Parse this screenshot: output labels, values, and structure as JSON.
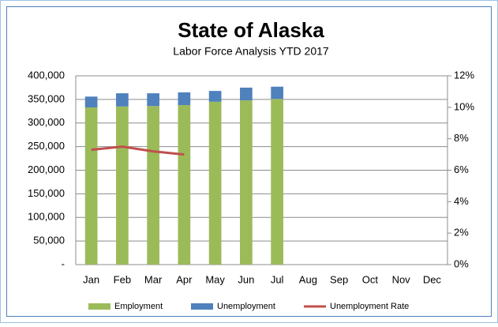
{
  "chart_data": {
    "type": "bar",
    "stacked": true,
    "title": "State of Alaska",
    "subtitle": "Labor Force Analysis YTD 2017",
    "categories": [
      "Jan",
      "Feb",
      "Mar",
      "Apr",
      "May",
      "Jun",
      "Jul",
      "Aug",
      "Sep",
      "Oct",
      "Nov",
      "Dec"
    ],
    "series": [
      {
        "name": "Employment",
        "type": "bar",
        "color": "#9bbb59",
        "values": [
          333000,
          335000,
          336000,
          338000,
          345000,
          348000,
          351000,
          null,
          null,
          null,
          null,
          null
        ]
      },
      {
        "name": "Unemployment",
        "type": "bar",
        "color": "#4f81bd",
        "values": [
          23000,
          28000,
          27000,
          27000,
          23000,
          27000,
          26000,
          null,
          null,
          null,
          null,
          null
        ]
      },
      {
        "name": "Unemployment Rate",
        "type": "line",
        "axis": "y2",
        "color": "#c0504d",
        "values": [
          7.3,
          7.5,
          7.2,
          7.0,
          null,
          null,
          null,
          null,
          null,
          null,
          null,
          null
        ]
      }
    ],
    "ylim": [
      0,
      400000
    ],
    "yticks": [
      {
        "value": 0,
        "label": "-"
      },
      {
        "value": 50000,
        "label": "50,000"
      },
      {
        "value": 100000,
        "label": "100,000"
      },
      {
        "value": 150000,
        "label": "150,000"
      },
      {
        "value": 200000,
        "label": "200,000"
      },
      {
        "value": 250000,
        "label": "250,000"
      },
      {
        "value": 300000,
        "label": "300,000"
      },
      {
        "value": 350000,
        "label": "350,000"
      },
      {
        "value": 400000,
        "label": "400,000"
      }
    ],
    "y2lim": [
      0,
      12
    ],
    "y2ticks": [
      {
        "value": 0,
        "label": "0%"
      },
      {
        "value": 2,
        "label": "2%"
      },
      {
        "value": 4,
        "label": "4%"
      },
      {
        "value": 6,
        "label": "6%"
      },
      {
        "value": 8,
        "label": "8%"
      },
      {
        "value": 10,
        "label": "10%"
      },
      {
        "value": 12,
        "label": "12%"
      }
    ],
    "grid": true,
    "legend": "bottom"
  }
}
